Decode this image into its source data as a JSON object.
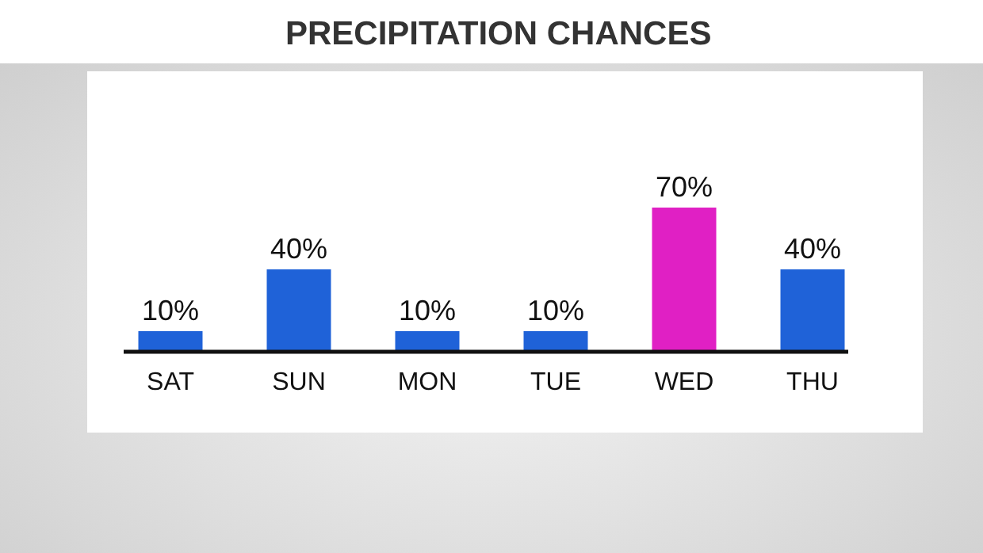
{
  "chart_data": {
    "type": "bar",
    "title": "PRECIPITATION CHANCES",
    "categories": [
      "SAT",
      "SUN",
      "MON",
      "TUE",
      "WED",
      "THU"
    ],
    "values": [
      10,
      40,
      10,
      10,
      70,
      40
    ],
    "value_labels": [
      "10%",
      "40%",
      "10%",
      "10%",
      "70%",
      "40%"
    ],
    "colors": [
      "#1f62d8",
      "#1f62d8",
      "#1f62d8",
      "#1f62d8",
      "#e020c4",
      "#1f62d8"
    ]
  }
}
